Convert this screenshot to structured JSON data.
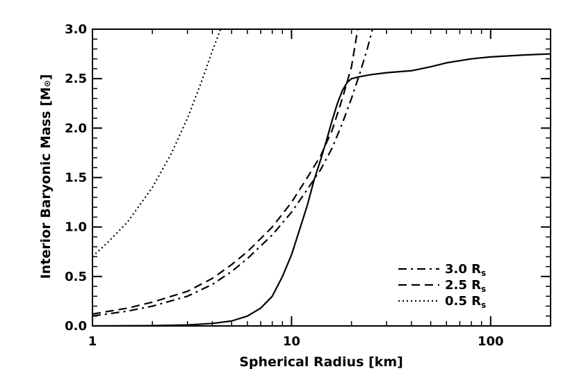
{
  "chart_data": {
    "type": "line",
    "title": "",
    "xlabel": "Spherical Radius [km]",
    "ylabel_text": "Interior Baryonic Mass [M",
    "ylabel_symbol": "⊙",
    "ylabel_close": "]",
    "x_scale": "log",
    "xlim": [
      1,
      200
    ],
    "ylim": [
      0.0,
      3.0
    ],
    "grid": false,
    "legend_position": "bottom-right",
    "x_ticks": [
      {
        "value": 1,
        "label": "1"
      },
      {
        "value": 10,
        "label": "10"
      },
      {
        "value": 100,
        "label": "100"
      }
    ],
    "y_ticks": [
      {
        "value": 0.0,
        "label": "0.0"
      },
      {
        "value": 0.5,
        "label": "0.5"
      },
      {
        "value": 1.0,
        "label": "1.0"
      },
      {
        "value": 1.5,
        "label": "1.5"
      },
      {
        "value": 2.0,
        "label": "2.0"
      },
      {
        "value": 2.5,
        "label": "2.5"
      },
      {
        "value": 3.0,
        "label": "3.0"
      }
    ],
    "series": [
      {
        "name": "",
        "style": "solid",
        "points": [
          [
            1,
            0.0
          ],
          [
            2,
            0.003
          ],
          [
            3,
            0.01
          ],
          [
            4,
            0.025
          ],
          [
            5,
            0.05
          ],
          [
            6,
            0.1
          ],
          [
            7,
            0.18
          ],
          [
            8,
            0.3
          ],
          [
            9,
            0.5
          ],
          [
            10,
            0.72
          ],
          [
            11,
            0.98
          ],
          [
            12,
            1.22
          ],
          [
            13,
            1.48
          ],
          [
            14,
            1.68
          ],
          [
            15,
            1.88
          ],
          [
            16,
            2.08
          ],
          [
            17,
            2.25
          ],
          [
            18,
            2.38
          ],
          [
            19,
            2.46
          ],
          [
            20,
            2.5
          ],
          [
            22,
            2.52
          ],
          [
            25,
            2.54
          ],
          [
            30,
            2.56
          ],
          [
            40,
            2.58
          ],
          [
            50,
            2.62
          ],
          [
            60,
            2.66
          ],
          [
            80,
            2.7
          ],
          [
            100,
            2.72
          ],
          [
            150,
            2.74
          ],
          [
            200,
            2.75
          ]
        ]
      },
      {
        "name_main": "3.0 R",
        "name_sub": "s",
        "style": "dashdot",
        "points": [
          [
            1,
            0.1
          ],
          [
            1.5,
            0.15
          ],
          [
            2,
            0.2
          ],
          [
            3,
            0.3
          ],
          [
            4,
            0.42
          ],
          [
            5,
            0.55
          ],
          [
            6,
            0.68
          ],
          [
            8,
            0.92
          ],
          [
            10,
            1.15
          ],
          [
            12,
            1.38
          ],
          [
            14,
            1.58
          ],
          [
            16,
            1.8
          ],
          [
            18,
            2.05
          ],
          [
            20,
            2.3
          ],
          [
            22,
            2.55
          ],
          [
            24,
            2.8
          ],
          [
            25.5,
            3.0
          ]
        ]
      },
      {
        "name_main": "2.5 R",
        "name_sub": "s",
        "style": "dash",
        "points": [
          [
            1,
            0.12
          ],
          [
            1.5,
            0.18
          ],
          [
            2,
            0.24
          ],
          [
            3,
            0.35
          ],
          [
            4,
            0.48
          ],
          [
            5,
            0.62
          ],
          [
            6,
            0.75
          ],
          [
            8,
            1.0
          ],
          [
            10,
            1.25
          ],
          [
            12,
            1.5
          ],
          [
            14,
            1.72
          ],
          [
            16,
            1.98
          ],
          [
            18,
            2.3
          ],
          [
            20,
            2.62
          ],
          [
            21.5,
            3.0
          ]
        ]
      },
      {
        "name_main": "0.5 R",
        "name_sub": "s",
        "style": "dot",
        "points": [
          [
            1,
            0.7
          ],
          [
            1.2,
            0.85
          ],
          [
            1.5,
            1.05
          ],
          [
            2,
            1.4
          ],
          [
            2.5,
            1.75
          ],
          [
            3,
            2.1
          ],
          [
            3.5,
            2.45
          ],
          [
            4,
            2.78
          ],
          [
            4.4,
            3.0
          ]
        ]
      }
    ]
  }
}
